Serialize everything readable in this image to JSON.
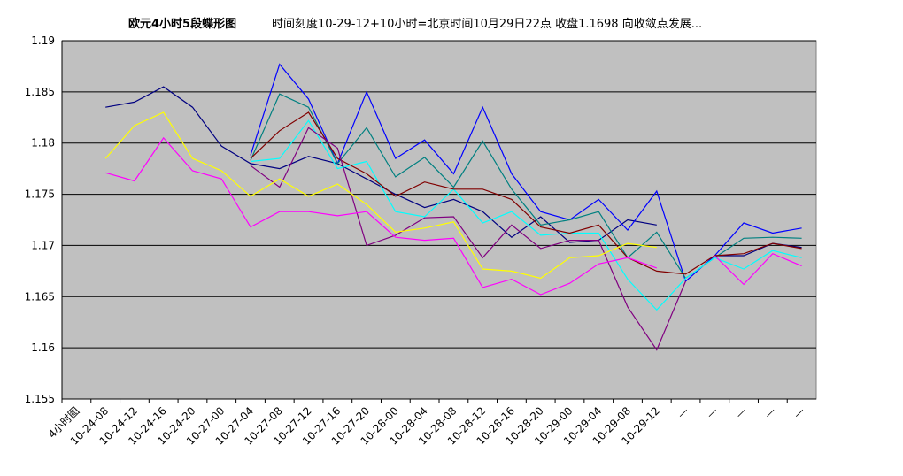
{
  "chart_data": {
    "type": "line",
    "title": "欧元4小时5段蝶形图",
    "subtitle": "时间刻度10-29-12+10小时=北京时间10月29日22点 收盘1.1698 向收敛点发展...",
    "categories": [
      "4小时图",
      "10-24-08",
      "10-24-12",
      "10-24-16",
      "10-24-20",
      "10-27-00",
      "10-27-04",
      "10-27-08",
      "10-27-12",
      "10-27-16",
      "10-27-20",
      "10-28-00",
      "10-28-04",
      "10-28-08",
      "10-28-12",
      "10-28-16",
      "10-28-20",
      "10-29-00",
      "10-29-04",
      "10-29-08",
      "10-29-12",
      "—",
      "—",
      "—",
      "—",
      "—"
    ],
    "ylim": [
      1.155,
      1.19
    ],
    "yticks": [
      1.155,
      1.16,
      1.165,
      1.17,
      1.175,
      1.18,
      1.185,
      1.19
    ],
    "grid": true,
    "plot_background": "#c0c0c0",
    "series": [
      {
        "color": "#000080",
        "values": [
          null,
          1.1835,
          1.184,
          1.1855,
          1.1835,
          1.1797,
          1.178,
          1.1775,
          1.1787,
          1.178,
          1.1765,
          1.175,
          1.1737,
          1.1745,
          1.1733,
          1.1708,
          1.1728,
          1.1703,
          1.1705,
          1.1725,
          1.172,
          null,
          1.169,
          1.169,
          1.1702,
          1.1698
        ]
      },
      {
        "color": "#0000ff",
        "values": [
          null,
          null,
          null,
          null,
          null,
          null,
          1.1788,
          1.1877,
          1.1843,
          1.178,
          1.185,
          1.1785,
          1.1803,
          1.177,
          1.1835,
          1.177,
          1.1733,
          1.1725,
          1.1745,
          1.1715,
          1.1753,
          1.1665,
          1.169,
          1.1722,
          1.1712,
          1.1717
        ]
      },
      {
        "color": "#008080",
        "values": [
          null,
          null,
          null,
          null,
          null,
          null,
          1.1783,
          1.1848,
          1.1835,
          1.178,
          1.1815,
          1.1767,
          1.1786,
          1.1757,
          1.1802,
          1.1755,
          1.172,
          1.1725,
          1.1733,
          1.1688,
          1.1713,
          1.1668,
          1.1688,
          1.1707,
          1.1708,
          1.1707
        ]
      },
      {
        "color": "#00ffff",
        "values": [
          null,
          null,
          null,
          null,
          null,
          null,
          1.1782,
          1.1785,
          1.1822,
          1.1775,
          1.1782,
          1.1733,
          1.1728,
          1.1755,
          1.1722,
          1.1733,
          1.171,
          1.1712,
          1.1712,
          1.1667,
          1.1637,
          1.1668,
          1.1688,
          1.1677,
          1.1695,
          1.1688
        ]
      },
      {
        "color": "#800000",
        "values": [
          null,
          null,
          null,
          null,
          null,
          null,
          1.1785,
          1.1812,
          1.183,
          1.1785,
          1.177,
          1.1748,
          1.1762,
          1.1755,
          1.1755,
          1.1745,
          1.1718,
          1.1712,
          1.172,
          1.1688,
          1.1675,
          1.1672,
          1.169,
          1.1692,
          1.1702,
          1.1697
        ]
      },
      {
        "color": "#800080",
        "values": [
          null,
          null,
          null,
          null,
          null,
          null,
          1.1778,
          1.1757,
          1.1815,
          1.1795,
          1.17,
          1.171,
          1.1727,
          1.1728,
          1.1688,
          1.172,
          1.1697,
          1.1705,
          1.1705,
          1.164,
          1.1598,
          1.1665,
          null,
          null,
          null,
          null
        ]
      },
      {
        "color": "#ff00ff",
        "values": [
          null,
          1.1771,
          1.1763,
          1.1805,
          1.1773,
          1.1765,
          1.1718,
          1.1733,
          1.1733,
          1.1729,
          1.1733,
          1.1708,
          1.1705,
          1.1707,
          1.1659,
          1.1667,
          1.1652,
          1.1663,
          1.1682,
          1.1688,
          1.1678,
          null,
          1.169,
          1.1662,
          1.1692,
          1.168
        ]
      },
      {
        "color": "#ffff00",
        "values": [
          null,
          1.1785,
          1.1817,
          1.183,
          1.1785,
          1.1773,
          1.1748,
          1.1765,
          1.1748,
          1.176,
          1.174,
          1.1713,
          1.1717,
          1.1723,
          1.1677,
          1.1675,
          1.1668,
          1.1688,
          1.169,
          1.1702,
          1.1698,
          null,
          null,
          null,
          null,
          null
        ]
      }
    ]
  }
}
